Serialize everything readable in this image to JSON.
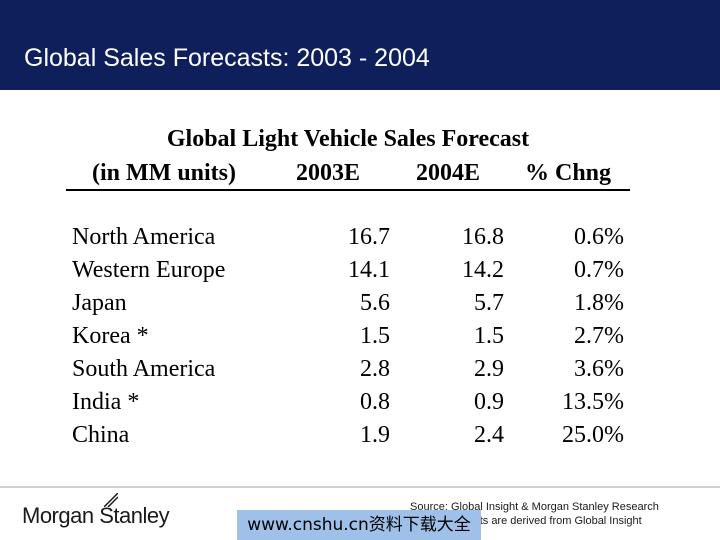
{
  "slide": {
    "title": "Global Sales Forecasts: 2003 - 2004"
  },
  "table": {
    "title": "Global Light Vehicle Sales Forecast",
    "headers": [
      "(in MM units)",
      "2003E",
      "2004E",
      "% Chng"
    ],
    "rows": [
      {
        "region": "North America",
        "y2003": "16.7",
        "y2004": "16.8",
        "change": "0.6%"
      },
      {
        "region": "Western Europe",
        "y2003": "14.1",
        "y2004": "14.2",
        "change": "0.7%"
      },
      {
        "region": "Japan",
        "y2003": "5.6",
        "y2004": "5.7",
        "change": "1.8%"
      },
      {
        "region": "Korea *",
        "y2003": "1.5",
        "y2004": "1.5",
        "change": "2.7%"
      },
      {
        "region": "South America",
        "y2003": "2.8",
        "y2004": "2.9",
        "change": "3.6%"
      },
      {
        "region": "India *",
        "y2003": "0.8",
        "y2004": "0.9",
        "change": "13.5%"
      },
      {
        "region": "China",
        "y2003": "1.9",
        "y2004": "2.4",
        "change": "25.0%"
      }
    ]
  },
  "footer": {
    "logo": "Morgan Stanley",
    "source": "Source: Global Insight & Morgan Stanley Research",
    "note": "* Note forecasts are derived from Global Insight",
    "watermark": "www.cnshu.cn资料下载大全"
  },
  "colors": {
    "header_bg": "#0f1f5c",
    "watermark_bg": "#9fc0e8"
  }
}
